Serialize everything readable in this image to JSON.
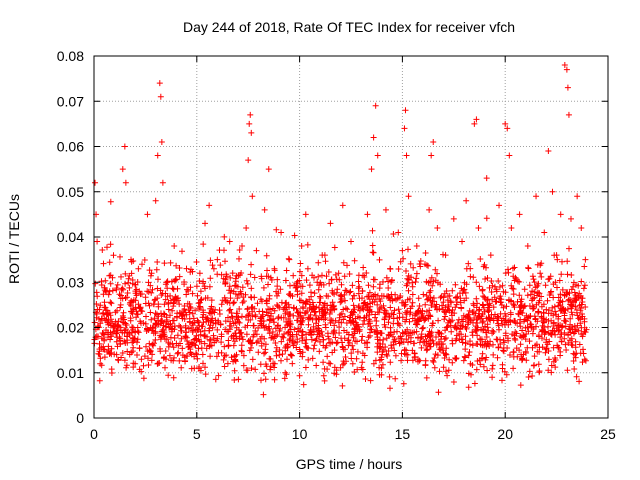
{
  "chart_data": {
    "type": "scatter",
    "title": "Day 244 of 2018, Rate Of TEC Index for receiver vfch",
    "xlabel": "GPS time / hours",
    "ylabel": "ROTI / TECUs",
    "xlim": [
      0,
      25
    ],
    "ylim": [
      0,
      0.08
    ],
    "xticks": [
      0,
      5,
      10,
      15,
      20,
      25
    ],
    "xtick_labels": [
      "0",
      "5",
      "10",
      "15",
      "20",
      "25"
    ],
    "yticks": [
      0,
      0.01,
      0.02,
      0.03,
      0.04,
      0.05,
      0.06,
      0.07,
      0.08
    ],
    "ytick_labels": [
      "0",
      "0.01",
      "0.02",
      "0.03",
      "0.04",
      "0.05",
      "0.06",
      "0.07",
      "0.08"
    ],
    "grid": true,
    "marker": "plus",
    "color": "#ff0000",
    "series": [
      {
        "name": "ROTI",
        "x": [
          0.05,
          0.1,
          0.15,
          0.2,
          0.3,
          0.5,
          0.7,
          0.9,
          1.1,
          1.3,
          1.4,
          1.5,
          1.55,
          1.6,
          1.8,
          2.0,
          2.2,
          2.4,
          2.6,
          2.7,
          2.8,
          3.0,
          3.1,
          3.2,
          3.25,
          3.3,
          3.35,
          3.4,
          3.5,
          3.7,
          3.9,
          4.1,
          4.3,
          4.5,
          4.8,
          5.0,
          5.2,
          5.4,
          5.6,
          5.8,
          6.0,
          6.2,
          6.4,
          6.6,
          6.8,
          7.0,
          7.2,
          7.4,
          7.5,
          7.55,
          7.6,
          7.65,
          7.7,
          7.9,
          8.1,
          8.3,
          8.5,
          8.6,
          8.7,
          8.9,
          9.1,
          9.3,
          9.5,
          9.7,
          9.9,
          10.1,
          10.3,
          10.5,
          10.7,
          10.9,
          11.1,
          11.3,
          11.5,
          11.7,
          11.9,
          12.1,
          12.3,
          12.5,
          12.7,
          12.9,
          13.1,
          13.3,
          13.5,
          13.6,
          13.7,
          13.8,
          14.0,
          14.2,
          14.4,
          14.6,
          14.8,
          15.0,
          15.1,
          15.15,
          15.2,
          15.3,
          15.5,
          15.7,
          15.9,
          16.1,
          16.3,
          16.4,
          16.5,
          16.7,
          16.9,
          17.1,
          17.3,
          17.5,
          17.7,
          17.9,
          18.1,
          18.3,
          18.5,
          18.6,
          18.7,
          18.9,
          19.1,
          19.3,
          19.5,
          19.7,
          19.9,
          20.0,
          20.1,
          20.2,
          20.3,
          20.5,
          20.7,
          20.9,
          21.1,
          21.3,
          21.5,
          21.7,
          21.9,
          22.1,
          22.3,
          22.5,
          22.7,
          22.9,
          23.0,
          23.05,
          23.1,
          23.2,
          23.3,
          23.5,
          23.7,
          23.9
        ],
        "y": [
          0.052,
          0.045,
          0.039,
          0.018,
          0.012,
          0.022,
          0.015,
          0.031,
          0.014,
          0.025,
          0.055,
          0.06,
          0.052,
          0.018,
          0.035,
          0.012,
          0.028,
          0.021,
          0.045,
          0.015,
          0.032,
          0.048,
          0.058,
          0.074,
          0.071,
          0.061,
          0.052,
          0.018,
          0.013,
          0.027,
          0.038,
          0.016,
          0.022,
          0.033,
          0.019,
          0.014,
          0.028,
          0.043,
          0.047,
          0.021,
          0.035,
          0.018,
          0.026,
          0.039,
          0.016,
          0.029,
          0.038,
          0.042,
          0.057,
          0.065,
          0.067,
          0.063,
          0.049,
          0.037,
          0.022,
          0.046,
          0.055,
          0.031,
          0.019,
          0.027,
          0.041,
          0.024,
          0.035,
          0.016,
          0.028,
          0.038,
          0.045,
          0.022,
          0.031,
          0.019,
          0.036,
          0.027,
          0.043,
          0.015,
          0.032,
          0.047,
          0.021,
          0.039,
          0.017,
          0.029,
          0.024,
          0.045,
          0.055,
          0.062,
          0.069,
          0.058,
          0.027,
          0.046,
          0.033,
          0.019,
          0.041,
          0.037,
          0.064,
          0.068,
          0.058,
          0.049,
          0.029,
          0.038,
          0.022,
          0.034,
          0.046,
          0.058,
          0.061,
          0.042,
          0.018,
          0.036,
          0.027,
          0.044,
          0.021,
          0.039,
          0.048,
          0.033,
          0.065,
          0.066,
          0.042,
          0.025,
          0.053,
          0.036,
          0.029,
          0.047,
          0.022,
          0.065,
          0.064,
          0.058,
          0.042,
          0.031,
          0.045,
          0.018,
          0.038,
          0.026,
          0.049,
          0.032,
          0.041,
          0.059,
          0.05,
          0.036,
          0.045,
          0.078,
          0.077,
          0.073,
          0.067,
          0.044,
          0.029,
          0.049,
          0.042,
          0.035
        ],
        "y_range_note": "dense band between about 0.005 and 0.035"
      }
    ]
  }
}
